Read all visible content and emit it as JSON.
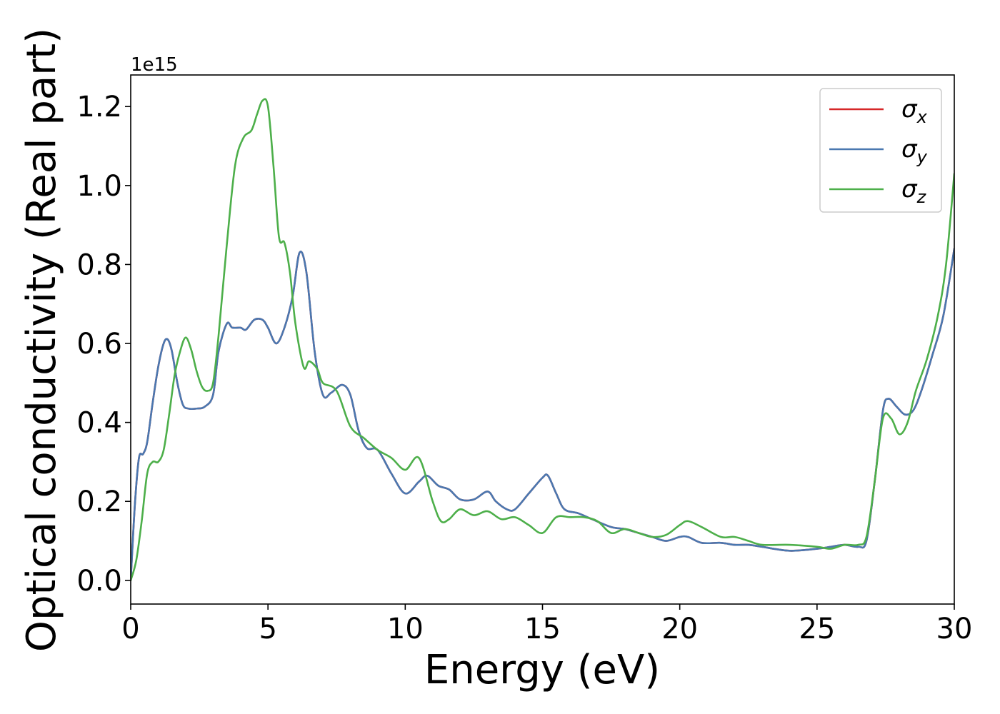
{
  "chart_data": {
    "type": "line",
    "xlabel": "Energy (eV)",
    "ylabel": "Optical conductivity (Real part)",
    "y_offset_label": "1e15",
    "xlim": [
      0,
      30
    ],
    "ylim": [
      -0.06,
      1.28
    ],
    "x_ticks": [
      0,
      5,
      10,
      15,
      20,
      25,
      30
    ],
    "x_tick_labels": [
      "0",
      "5",
      "10",
      "15",
      "20",
      "25",
      "30"
    ],
    "y_ticks": [
      0.0,
      0.2,
      0.4,
      0.6,
      0.8,
      1.0,
      1.2
    ],
    "y_tick_labels": [
      "0.0",
      "0.2",
      "0.4",
      "0.6",
      "0.8",
      "1.0",
      "1.2"
    ],
    "grid": false,
    "legend_position": "top-right",
    "series": [
      {
        "name": "σx",
        "label_base": "σ",
        "label_sub": "x",
        "color": "#d62728",
        "x": [
          0,
          0.15,
          0.3,
          0.45,
          0.6,
          0.8,
          1.0,
          1.2,
          1.35,
          1.5,
          1.7,
          1.9,
          2.1,
          2.4,
          2.7,
          3.0,
          3.2,
          3.5,
          3.7,
          4.0,
          4.2,
          4.5,
          4.8,
          5.0,
          5.3,
          5.6,
          5.9,
          6.15,
          6.4,
          6.7,
          7.0,
          7.3,
          7.7,
          8.0,
          8.3,
          8.6,
          9.0,
          9.5,
          10.0,
          10.5,
          10.8,
          11.2,
          11.6,
          12.0,
          12.5,
          13.0,
          13.3,
          13.7,
          14.0,
          14.5,
          15.0,
          15.2,
          15.5,
          15.8,
          16.3,
          16.8,
          17.5,
          18.0,
          18.5,
          19.0,
          19.5,
          20.0,
          20.3,
          20.8,
          21.5,
          22.0,
          22.5,
          23.0,
          24.0,
          25.0,
          25.5,
          26.0,
          26.5,
          26.8,
          27.1,
          27.4,
          27.6,
          27.9,
          28.2,
          28.5,
          28.8,
          29.2,
          29.6,
          30.0
        ],
        "values": [
          0.0,
          0.19,
          0.31,
          0.32,
          0.35,
          0.45,
          0.54,
          0.6,
          0.61,
          0.58,
          0.5,
          0.445,
          0.435,
          0.435,
          0.44,
          0.47,
          0.58,
          0.65,
          0.64,
          0.64,
          0.635,
          0.66,
          0.66,
          0.64,
          0.6,
          0.64,
          0.72,
          0.83,
          0.78,
          0.58,
          0.47,
          0.475,
          0.495,
          0.47,
          0.38,
          0.335,
          0.33,
          0.27,
          0.22,
          0.25,
          0.265,
          0.24,
          0.23,
          0.205,
          0.205,
          0.225,
          0.2,
          0.18,
          0.18,
          0.22,
          0.26,
          0.265,
          0.22,
          0.18,
          0.17,
          0.155,
          0.135,
          0.13,
          0.12,
          0.11,
          0.1,
          0.11,
          0.11,
          0.095,
          0.095,
          0.09,
          0.09,
          0.085,
          0.075,
          0.08,
          0.085,
          0.09,
          0.085,
          0.1,
          0.25,
          0.43,
          0.46,
          0.44,
          0.42,
          0.43,
          0.48,
          0.57,
          0.67,
          0.84
        ]
      },
      {
        "name": "σy",
        "label_base": "σ",
        "label_sub": "y",
        "color": "#4a78b0",
        "x": [
          0,
          0.15,
          0.3,
          0.45,
          0.6,
          0.8,
          1.0,
          1.2,
          1.35,
          1.5,
          1.7,
          1.9,
          2.1,
          2.4,
          2.7,
          3.0,
          3.2,
          3.5,
          3.7,
          4.0,
          4.2,
          4.5,
          4.8,
          5.0,
          5.3,
          5.6,
          5.9,
          6.15,
          6.4,
          6.7,
          7.0,
          7.3,
          7.7,
          8.0,
          8.3,
          8.6,
          9.0,
          9.5,
          10.0,
          10.5,
          10.8,
          11.2,
          11.6,
          12.0,
          12.5,
          13.0,
          13.3,
          13.7,
          14.0,
          14.5,
          15.0,
          15.2,
          15.5,
          15.8,
          16.3,
          16.8,
          17.5,
          18.0,
          18.5,
          19.0,
          19.5,
          20.0,
          20.3,
          20.8,
          21.5,
          22.0,
          22.5,
          23.0,
          24.0,
          25.0,
          25.5,
          26.0,
          26.5,
          26.8,
          27.1,
          27.4,
          27.6,
          27.9,
          28.2,
          28.5,
          28.8,
          29.2,
          29.6,
          30.0
        ],
        "values": [
          0.0,
          0.19,
          0.31,
          0.32,
          0.35,
          0.45,
          0.54,
          0.6,
          0.61,
          0.58,
          0.5,
          0.445,
          0.435,
          0.435,
          0.44,
          0.47,
          0.58,
          0.65,
          0.64,
          0.64,
          0.635,
          0.66,
          0.66,
          0.64,
          0.6,
          0.64,
          0.72,
          0.83,
          0.78,
          0.58,
          0.47,
          0.475,
          0.495,
          0.47,
          0.38,
          0.335,
          0.33,
          0.27,
          0.22,
          0.25,
          0.265,
          0.24,
          0.23,
          0.205,
          0.205,
          0.225,
          0.2,
          0.18,
          0.18,
          0.22,
          0.26,
          0.265,
          0.22,
          0.18,
          0.17,
          0.155,
          0.135,
          0.13,
          0.12,
          0.11,
          0.1,
          0.11,
          0.11,
          0.095,
          0.095,
          0.09,
          0.09,
          0.085,
          0.075,
          0.08,
          0.085,
          0.09,
          0.085,
          0.1,
          0.25,
          0.43,
          0.46,
          0.44,
          0.42,
          0.43,
          0.48,
          0.57,
          0.67,
          0.84
        ]
      },
      {
        "name": "σz",
        "label_base": "σ",
        "label_sub": "z",
        "color": "#4daf4a",
        "x": [
          0,
          0.2,
          0.4,
          0.6,
          0.8,
          1.0,
          1.2,
          1.4,
          1.6,
          1.8,
          2.0,
          2.2,
          2.4,
          2.6,
          2.8,
          3.0,
          3.2,
          3.5,
          3.8,
          4.1,
          4.4,
          4.6,
          4.8,
          5.0,
          5.2,
          5.4,
          5.6,
          5.8,
          6.0,
          6.3,
          6.5,
          6.8,
          7.0,
          7.5,
          8.0,
          8.5,
          9.0,
          9.5,
          10.0,
          10.5,
          11.0,
          11.3,
          11.6,
          12.0,
          12.5,
          13.0,
          13.5,
          14.0,
          14.5,
          15.0,
          15.5,
          16.0,
          16.5,
          17.0,
          17.5,
          18.0,
          18.5,
          19.0,
          19.5,
          20.0,
          20.3,
          20.8,
          21.5,
          22.0,
          22.5,
          23.0,
          24.0,
          25.0,
          25.5,
          26.0,
          26.5,
          26.8,
          27.1,
          27.4,
          27.7,
          28.0,
          28.3,
          28.6,
          29.0,
          29.4,
          29.7,
          30.0
        ],
        "values": [
          0.0,
          0.05,
          0.15,
          0.27,
          0.3,
          0.3,
          0.33,
          0.42,
          0.52,
          0.58,
          0.615,
          0.585,
          0.53,
          0.49,
          0.48,
          0.5,
          0.62,
          0.85,
          1.05,
          1.12,
          1.14,
          1.18,
          1.215,
          1.2,
          1.05,
          0.87,
          0.855,
          0.78,
          0.65,
          0.54,
          0.555,
          0.535,
          0.5,
          0.48,
          0.39,
          0.36,
          0.33,
          0.31,
          0.28,
          0.31,
          0.2,
          0.15,
          0.155,
          0.18,
          0.165,
          0.175,
          0.155,
          0.16,
          0.14,
          0.12,
          0.16,
          0.16,
          0.16,
          0.15,
          0.12,
          0.13,
          0.12,
          0.11,
          0.115,
          0.14,
          0.15,
          0.135,
          0.11,
          0.11,
          0.1,
          0.09,
          0.09,
          0.085,
          0.08,
          0.09,
          0.09,
          0.11,
          0.25,
          0.41,
          0.41,
          0.37,
          0.4,
          0.48,
          0.56,
          0.67,
          0.8,
          1.03
        ]
      }
    ]
  }
}
